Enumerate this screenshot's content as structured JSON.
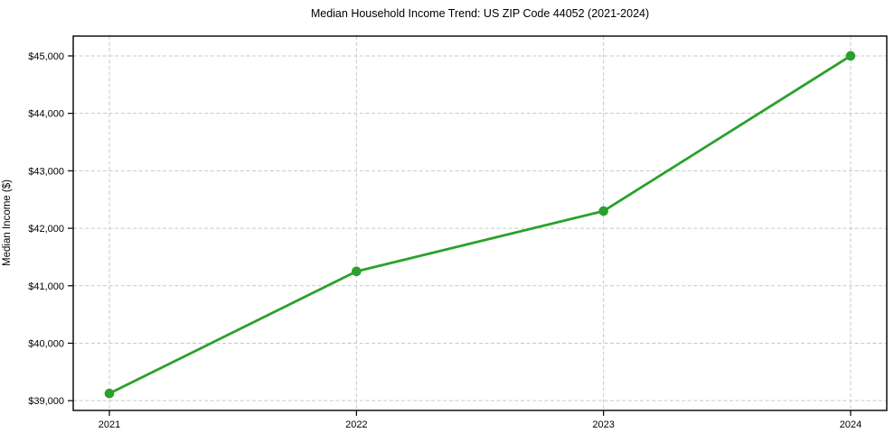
{
  "chart_data": {
    "type": "line",
    "title": "Median Household Income Trend: US ZIP Code 44052 (2021-2024)",
    "xlabel": "",
    "ylabel": "Median Income ($)",
    "x": [
      2021,
      2022,
      2023,
      2024
    ],
    "x_tick_labels": [
      "2021",
      "2022",
      "2023",
      "2024"
    ],
    "series": [
      {
        "name": "median-household-income",
        "values": [
          39125,
          41250,
          42300,
          45000
        ],
        "color": "#2ca02c",
        "marker": "circle",
        "line_width": 2.8,
        "marker_radius": 5.3
      }
    ],
    "y_ticks": [
      39000,
      40000,
      41000,
      42000,
      43000,
      44000,
      45000
    ],
    "y_tick_labels": [
      "$39,000",
      "$40,000",
      "$41,000",
      "$42,000",
      "$43,000",
      "$44,000",
      "$45,000"
    ],
    "ylim": [
      38830,
      45345
    ],
    "grid": "dashed",
    "legend": "none"
  },
  "colors": {
    "accent_line": "#2ca02c",
    "grid": "#c8c8c8",
    "axis_border": "#000000",
    "text": "#000000",
    "background": "#ffffff"
  }
}
